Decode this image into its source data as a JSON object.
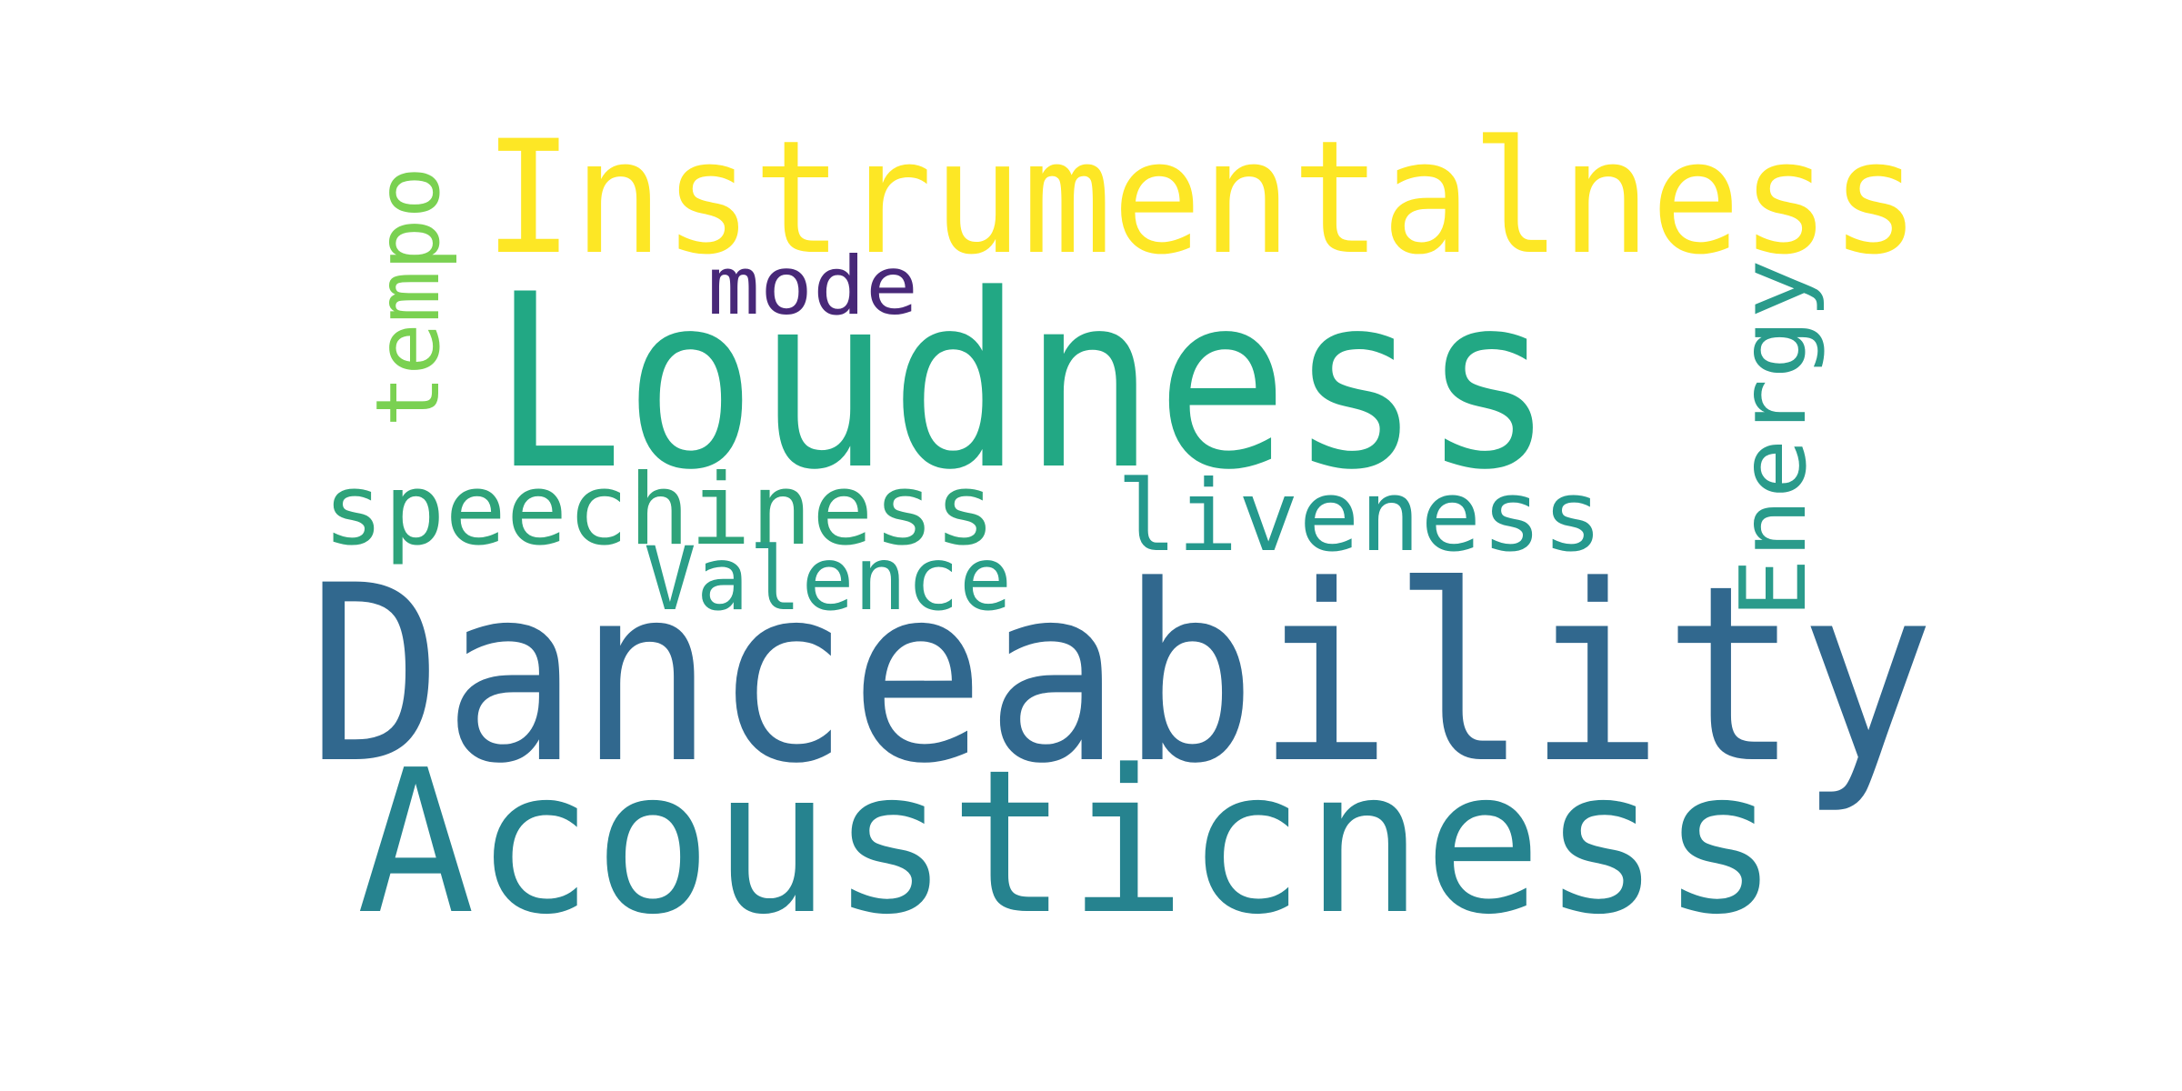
{
  "wordcloud": {
    "words": [
      {
        "id": "instrumentalness",
        "text": "Instrumentalness",
        "color": "#fde725"
      },
      {
        "id": "tempo",
        "text": "tempo",
        "color": "#7ad151"
      },
      {
        "id": "mode",
        "text": "mode",
        "color": "#482878"
      },
      {
        "id": "loudness",
        "text": "Loudness",
        "color": "#22a884"
      },
      {
        "id": "energy",
        "text": "Energy",
        "color": "#2a9b8b"
      },
      {
        "id": "speechiness",
        "text": "speechiness",
        "color": "#2ea37a"
      },
      {
        "id": "liveness",
        "text": "liveness",
        "color": "#25998d"
      },
      {
        "id": "valence",
        "text": "Valence",
        "color": "#2a9e88"
      },
      {
        "id": "danceability",
        "text": "Danceability",
        "color": "#31688e"
      },
      {
        "id": "acousticness",
        "text": "Acousticness",
        "color": "#26838f"
      }
    ]
  }
}
